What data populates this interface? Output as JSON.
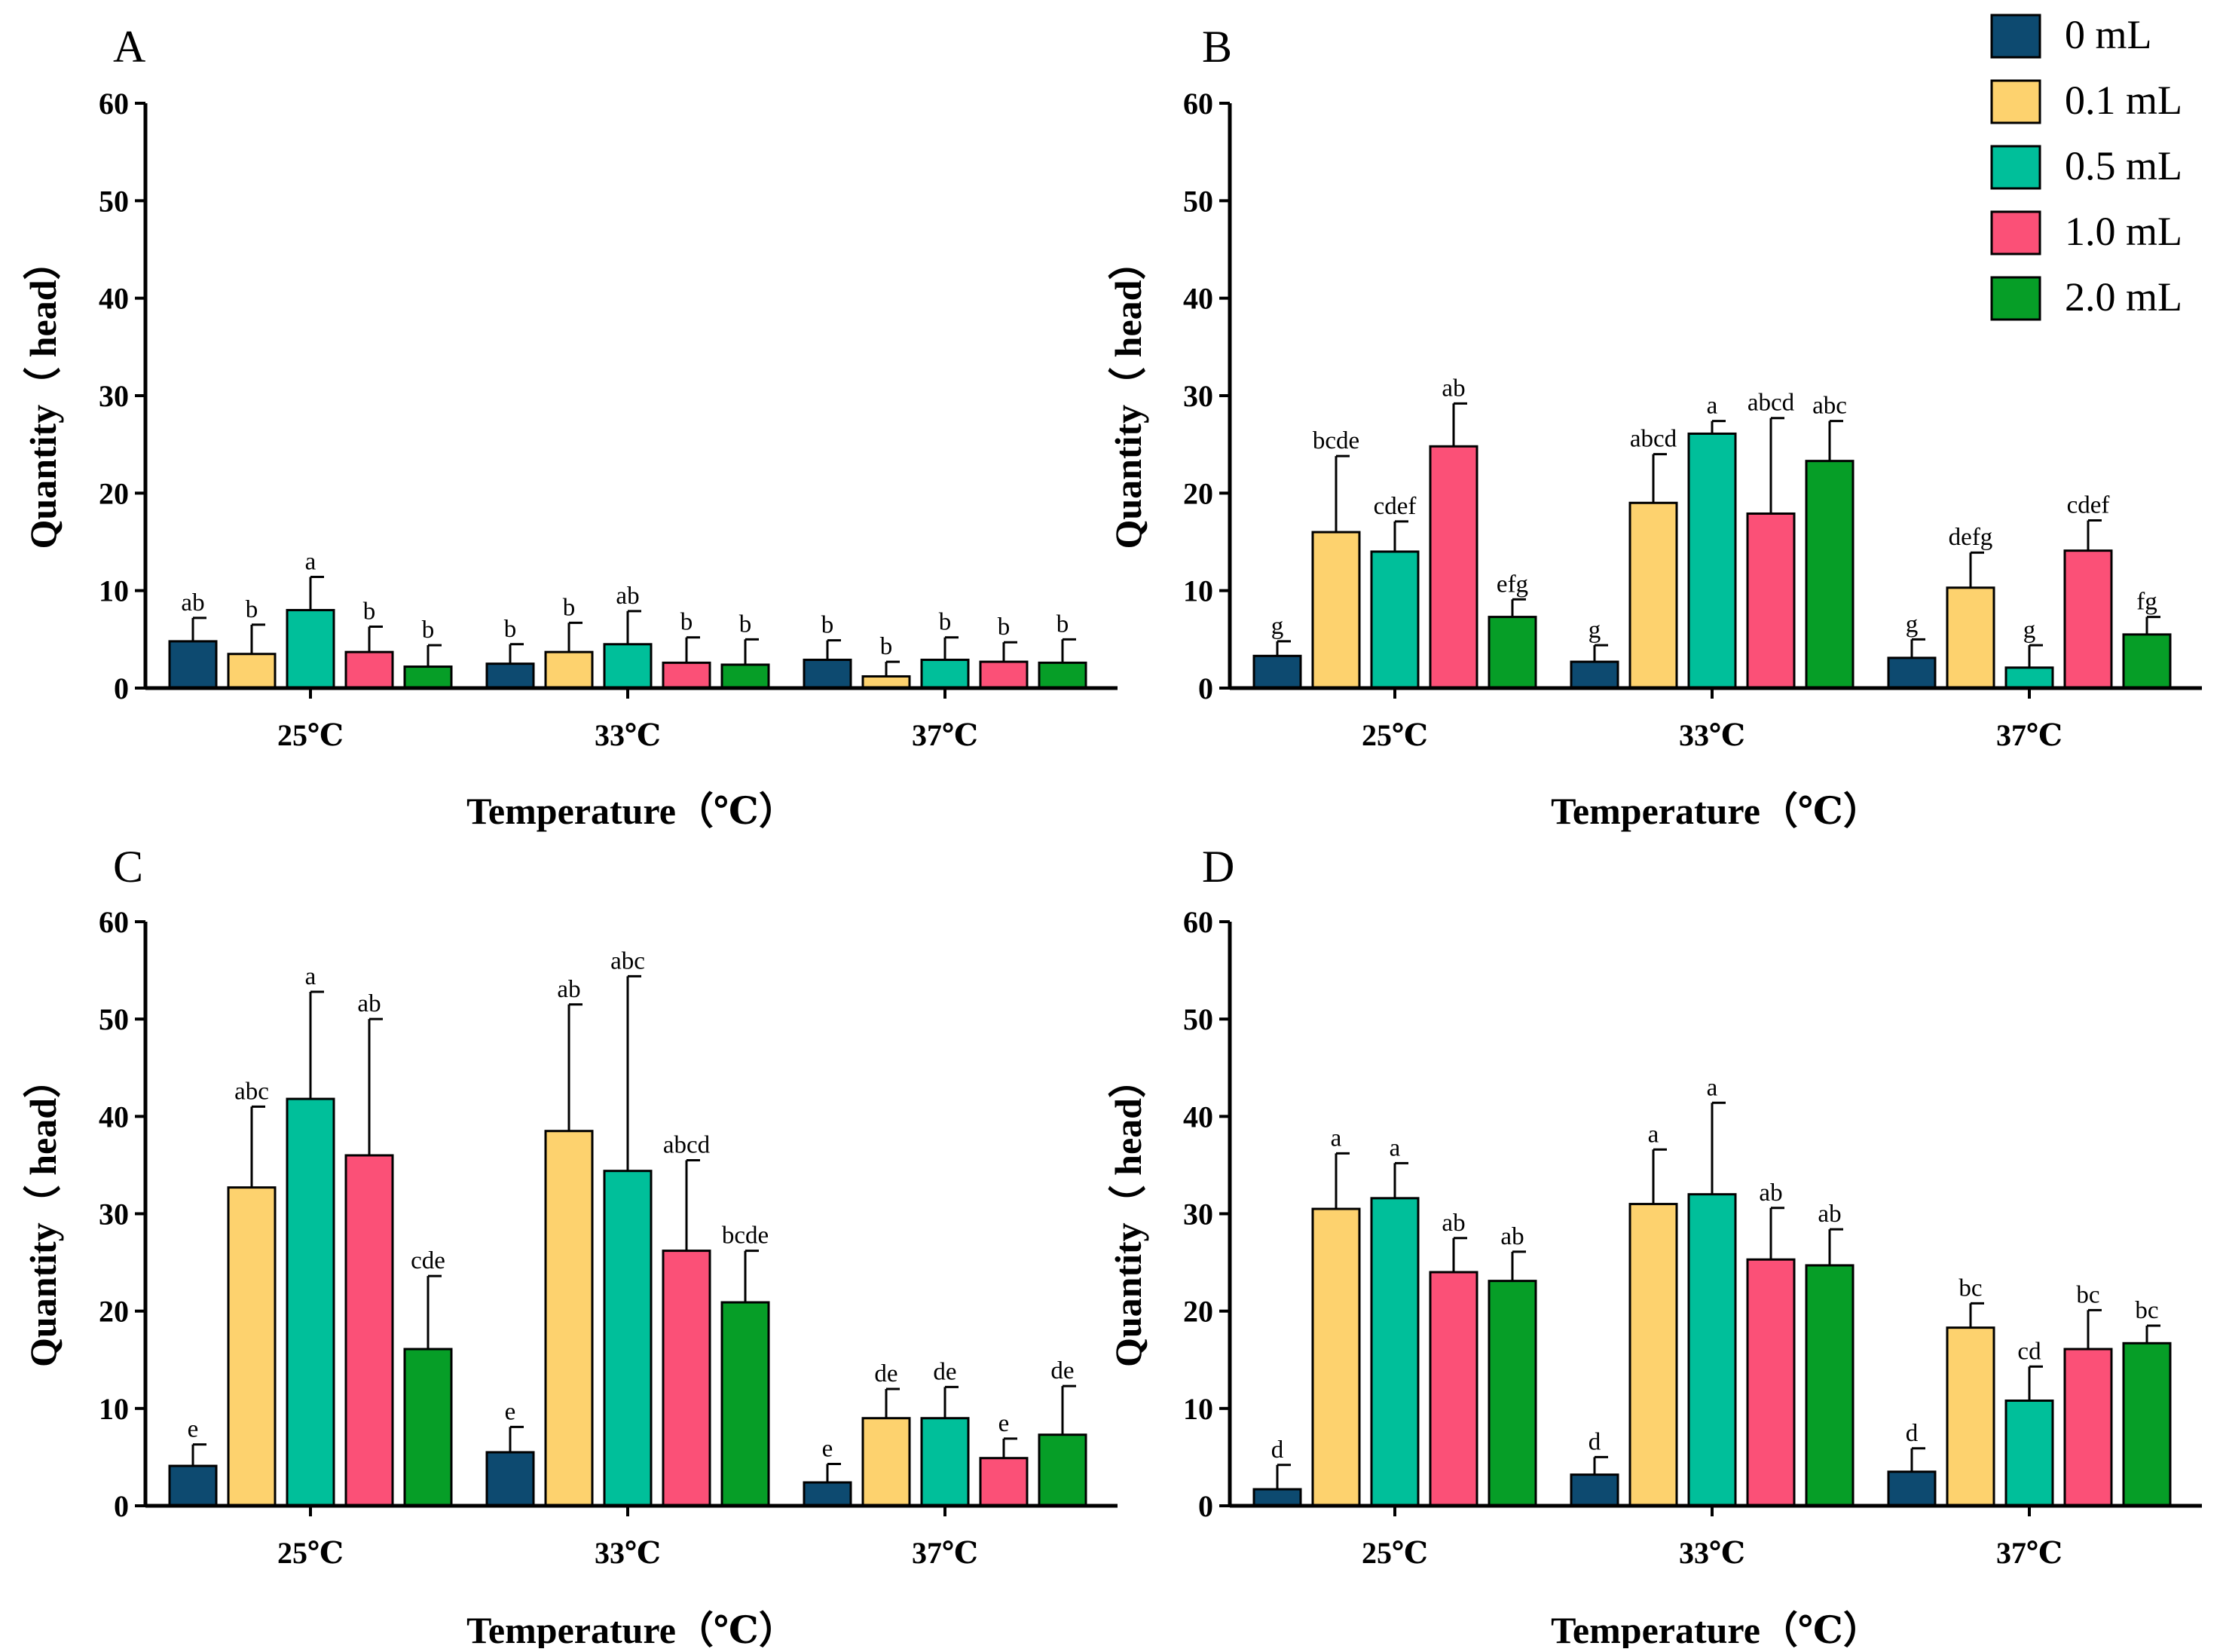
{
  "colors": {
    "0 mL": "#0d4a70",
    "0.1 mL": "#fdd26e",
    "0.5 mL": "#00bf9a",
    "1.0 mL": "#fb5077",
    "2.0 mL": "#069e27"
  },
  "legend": {
    "items": [
      "0 mL",
      "0.1 mL",
      "0.5 mL",
      "1.0 mL",
      "2.0 mL"
    ]
  },
  "chart_data": [
    {
      "type": "bar",
      "panel": "A",
      "xlabel": "Temperature（℃）",
      "ylabel": "Quantity（ head）",
      "ylim": [
        0,
        60
      ],
      "yticks": [
        "0",
        "10",
        "20",
        "30",
        "40",
        "50",
        "60"
      ],
      "categories": [
        "25℃",
        "33℃",
        "37℃"
      ],
      "series": [
        {
          "name": "0 mL",
          "values": [
            4.8,
            2.5,
            2.9
          ],
          "errors": [
            2.4,
            2.0,
            2.0
          ],
          "labels": [
            "ab",
            "b",
            "b"
          ]
        },
        {
          "name": "0.1 mL",
          "values": [
            3.5,
            3.7,
            1.2
          ],
          "errors": [
            3.0,
            3.0,
            1.5
          ],
          "labels": [
            "b",
            "b",
            "b"
          ]
        },
        {
          "name": "0.5 mL",
          "values": [
            8.0,
            4.5,
            2.9
          ],
          "errors": [
            3.4,
            3.4,
            2.3
          ],
          "labels": [
            "a",
            "ab",
            "b"
          ]
        },
        {
          "name": "1.0 mL",
          "values": [
            3.7,
            2.6,
            2.7
          ],
          "errors": [
            2.6,
            2.6,
            2.0
          ],
          "labels": [
            "b",
            "b",
            "b"
          ]
        },
        {
          "name": "2.0 mL",
          "values": [
            2.2,
            2.4,
            2.6
          ],
          "errors": [
            2.2,
            2.6,
            2.4
          ],
          "labels": [
            "b",
            "b",
            "b"
          ]
        }
      ]
    },
    {
      "type": "bar",
      "panel": "B",
      "xlabel": "Temperature（℃）",
      "ylabel": "Quantity（ head）",
      "ylim": [
        0,
        60
      ],
      "yticks": [
        "0",
        "10",
        "20",
        "30",
        "40",
        "50",
        "60"
      ],
      "categories": [
        "25℃",
        "33℃",
        "37℃"
      ],
      "series": [
        {
          "name": "0 mL",
          "values": [
            3.3,
            2.7,
            3.1
          ],
          "errors": [
            1.5,
            1.7,
            1.9
          ],
          "labels": [
            "g",
            "g",
            "g"
          ]
        },
        {
          "name": "0.1 mL",
          "values": [
            16.0,
            19.0,
            10.3
          ],
          "errors": [
            7.8,
            5.0,
            3.6
          ],
          "labels": [
            "bcde",
            "abcd",
            "defg"
          ]
        },
        {
          "name": "0.5 mL",
          "values": [
            14.0,
            26.1,
            2.1
          ],
          "errors": [
            3.1,
            1.3,
            2.3
          ],
          "labels": [
            "cdef",
            "a",
            "g"
          ]
        },
        {
          "name": "1.0 mL",
          "values": [
            24.8,
            17.9,
            14.1
          ],
          "errors": [
            4.4,
            9.8,
            3.1
          ],
          "labels": [
            "ab",
            "abcd",
            "cdef"
          ]
        },
        {
          "name": "2.0 mL",
          "values": [
            7.3,
            23.3,
            5.5
          ],
          "errors": [
            1.8,
            4.1,
            1.8
          ],
          "labels": [
            "efg",
            "abc",
            "fg"
          ]
        }
      ]
    },
    {
      "type": "bar",
      "panel": "C",
      "xlabel": "Temperature（℃）",
      "ylabel": "Quantity（ head）",
      "ylim": [
        0,
        60
      ],
      "yticks": [
        "0",
        "10",
        "20",
        "30",
        "40",
        "50",
        "60"
      ],
      "categories": [
        "25℃",
        "33℃",
        "37℃"
      ],
      "series": [
        {
          "name": "0 mL",
          "values": [
            4.1,
            5.5,
            2.4
          ],
          "errors": [
            2.2,
            2.6,
            1.9
          ],
          "labels": [
            "e",
            "e",
            "e"
          ]
        },
        {
          "name": "0.1 mL",
          "values": [
            32.7,
            38.5,
            9.0
          ],
          "errors": [
            8.3,
            13.0,
            3.0
          ],
          "labels": [
            "abc",
            "ab",
            "de"
          ]
        },
        {
          "name": "0.5 mL",
          "values": [
            41.8,
            34.4,
            9.0
          ],
          "errors": [
            11.0,
            20.0,
            3.2
          ],
          "labels": [
            "a",
            "abc",
            "de"
          ]
        },
        {
          "name": "1.0 mL",
          "values": [
            36.0,
            26.2,
            4.9
          ],
          "errors": [
            14.0,
            9.3,
            2.0
          ],
          "labels": [
            "ab",
            "abcd",
            "e"
          ]
        },
        {
          "name": "2.0 mL",
          "values": [
            16.1,
            20.9,
            7.3
          ],
          "errors": [
            7.5,
            5.3,
            5.0
          ],
          "labels": [
            "cde",
            "bcde",
            "de"
          ]
        }
      ]
    },
    {
      "type": "bar",
      "panel": "D",
      "xlabel": "Temperature（℃）",
      "ylabel": "Quantity（ head）",
      "ylim": [
        0,
        60
      ],
      "yticks": [
        "0",
        "10",
        "20",
        "30",
        "40",
        "50",
        "60"
      ],
      "categories": [
        "25℃",
        "33℃",
        "37℃"
      ],
      "series": [
        {
          "name": "0 mL",
          "values": [
            1.7,
            3.2,
            3.5
          ],
          "errors": [
            2.5,
            1.8,
            2.4
          ],
          "labels": [
            "d",
            "d",
            "d"
          ]
        },
        {
          "name": "0.1 mL",
          "values": [
            30.5,
            31.0,
            18.3
          ],
          "errors": [
            5.7,
            5.6,
            2.5
          ],
          "labels": [
            "a",
            "a",
            "bc"
          ]
        },
        {
          "name": "0.5 mL",
          "values": [
            31.6,
            32.0,
            10.8
          ],
          "errors": [
            3.6,
            9.4,
            3.5
          ],
          "labels": [
            "a",
            "a",
            "cd"
          ]
        },
        {
          "name": "1.0 mL",
          "values": [
            24.0,
            25.3,
            16.1
          ],
          "errors": [
            3.5,
            5.3,
            4.0
          ],
          "labels": [
            "ab",
            "ab",
            "bc"
          ]
        },
        {
          "name": "2.0 mL",
          "values": [
            23.1,
            24.7,
            16.7
          ],
          "errors": [
            3.0,
            3.7,
            1.8
          ],
          "labels": [
            "ab",
            "ab",
            "bc"
          ]
        }
      ]
    }
  ]
}
